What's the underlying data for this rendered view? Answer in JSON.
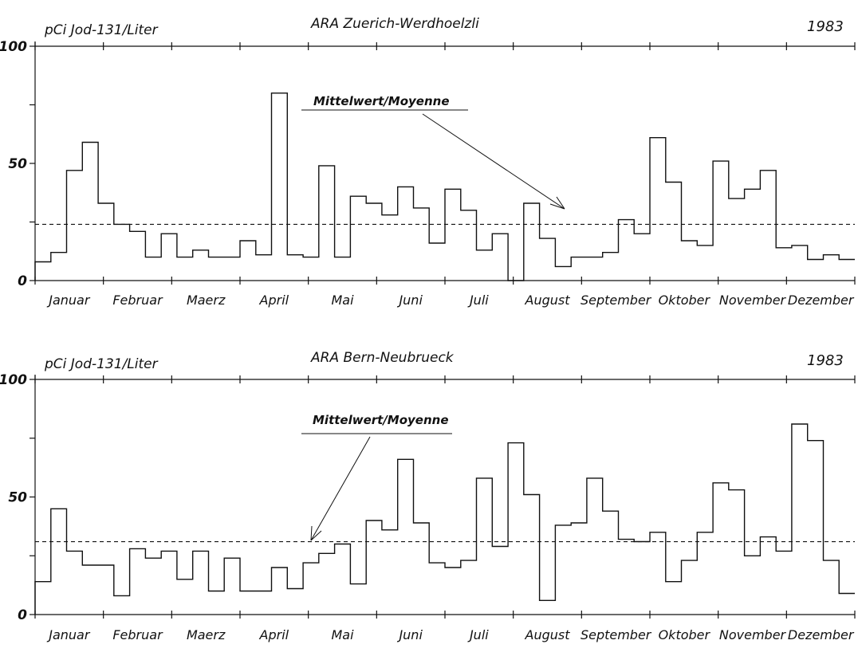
{
  "chart_data": [
    {
      "type": "line",
      "step": true,
      "title": "ARA Zuerich-Werdhoelzli",
      "ylabel": "pCi Jod-131/Liter",
      "year": "1983",
      "ylim": [
        0,
        100
      ],
      "yticks": [
        0,
        25,
        50,
        75,
        100
      ],
      "ytick_labels": [
        "0",
        "",
        "50",
        "",
        "100"
      ],
      "months": [
        "Januar",
        "Februar",
        "Maerz",
        "April",
        "Mai",
        "Juni",
        "Juli",
        "August",
        "September",
        "Oktober",
        "November",
        "Dezember"
      ],
      "annotation": "Mittelwert/Moyenne",
      "mean": 24,
      "series": [
        {
          "values": [
            8,
            12,
            47,
            59,
            33,
            24,
            21,
            10,
            20,
            10,
            13,
            10,
            10,
            17,
            11,
            80,
            11,
            10,
            49,
            10,
            36,
            33,
            28,
            40,
            31,
            16,
            39,
            30,
            13,
            20,
            0,
            33,
            18,
            6,
            10,
            10,
            12,
            26,
            20,
            61,
            42,
            17,
            15,
            51,
            35,
            39,
            47,
            14,
            15,
            9,
            11,
            9
          ]
        }
      ]
    },
    {
      "type": "line",
      "step": true,
      "title": "ARA Bern-Neubrueck",
      "ylabel": "pCi Jod-131/Liter",
      "year": "1983",
      "ylim": [
        0,
        100
      ],
      "yticks": [
        0,
        25,
        50,
        75,
        100
      ],
      "ytick_labels": [
        "0",
        "",
        "50",
        "",
        "100"
      ],
      "months": [
        "Januar",
        "Februar",
        "Maerz",
        "April",
        "Mai",
        "Juni",
        "Juli",
        "August",
        "September",
        "Oktober",
        "November",
        "Dezember"
      ],
      "annotation": "Mittelwert/Moyenne",
      "mean": 31,
      "series": [
        {
          "values": [
            14,
            45,
            27,
            21,
            21,
            8,
            28,
            24,
            27,
            15,
            27,
            10,
            24,
            10,
            10,
            20,
            11,
            22,
            26,
            30,
            13,
            40,
            36,
            66,
            39,
            22,
            20,
            23,
            58,
            29,
            73,
            51,
            6,
            38,
            39,
            58,
            44,
            32,
            31,
            35,
            14,
            23,
            35,
            56,
            53,
            25,
            33,
            27,
            81,
            74,
            23,
            9
          ]
        }
      ]
    }
  ]
}
